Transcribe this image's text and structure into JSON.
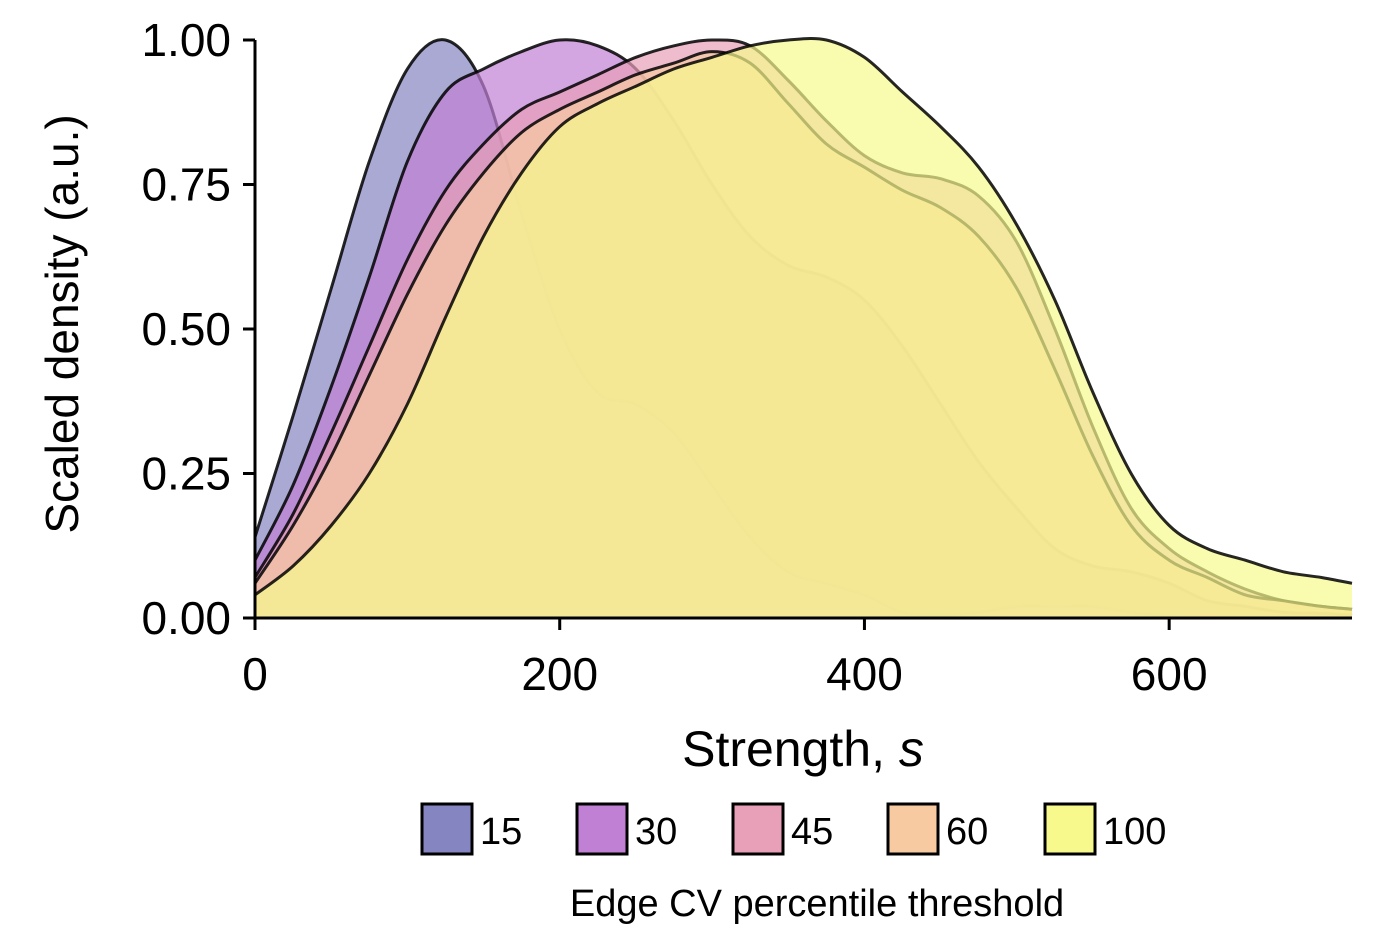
{
  "chart_data": {
    "type": "area",
    "title": "",
    "xlabel": "Strength, ",
    "xlabel_italic": "s",
    "ylabel": "Scaled density (a.u.)",
    "xlim": [
      0,
      720
    ],
    "ylim": [
      0,
      1
    ],
    "xticks": [
      "0",
      "200",
      "400",
      "600"
    ],
    "yticks": [
      "0.00",
      "0.25",
      "0.50",
      "0.75",
      "1.00"
    ],
    "grid": false,
    "legend_position": "bottom",
    "legend_title": "Edge CV percentile threshold",
    "x": [
      0,
      25,
      50,
      75,
      100,
      125,
      150,
      175,
      200,
      225,
      250,
      275,
      300,
      325,
      350,
      375,
      400,
      425,
      450,
      475,
      500,
      525,
      550,
      575,
      600,
      625,
      650,
      675,
      700,
      720
    ],
    "series": [
      {
        "name": "15",
        "color": "#8585c2",
        "values": [
          0.14,
          0.35,
          0.57,
          0.79,
          0.95,
          1.0,
          0.92,
          0.7,
          0.5,
          0.39,
          0.37,
          0.32,
          0.23,
          0.14,
          0.08,
          0.06,
          0.04,
          0.01,
          0.005,
          0.01,
          0.02,
          0.02,
          0.02,
          0.01,
          0.004,
          0.002,
          0.001,
          0.0,
          0.0,
          0.0
        ]
      },
      {
        "name": "30",
        "color": "#c080d4",
        "values": [
          0.1,
          0.23,
          0.4,
          0.59,
          0.79,
          0.91,
          0.95,
          0.98,
          1.0,
          0.99,
          0.95,
          0.86,
          0.75,
          0.66,
          0.61,
          0.59,
          0.55,
          0.47,
          0.37,
          0.27,
          0.19,
          0.12,
          0.09,
          0.08,
          0.06,
          0.03,
          0.02,
          0.01,
          0.008,
          0.005
        ]
      },
      {
        "name": "45",
        "color": "#e8a0b8",
        "values": [
          0.07,
          0.18,
          0.32,
          0.47,
          0.62,
          0.74,
          0.82,
          0.88,
          0.91,
          0.94,
          0.97,
          0.99,
          1.0,
          0.99,
          0.93,
          0.86,
          0.8,
          0.77,
          0.76,
          0.73,
          0.65,
          0.5,
          0.33,
          0.19,
          0.12,
          0.08,
          0.05,
          0.03,
          0.02,
          0.015
        ]
      },
      {
        "name": "60",
        "color": "#f8caa2",
        "values": [
          0.06,
          0.16,
          0.28,
          0.42,
          0.56,
          0.68,
          0.77,
          0.84,
          0.88,
          0.91,
          0.94,
          0.96,
          0.98,
          0.96,
          0.89,
          0.82,
          0.78,
          0.74,
          0.71,
          0.66,
          0.57,
          0.43,
          0.28,
          0.16,
          0.1,
          0.07,
          0.04,
          0.03,
          0.02,
          0.015
        ]
      },
      {
        "name": "100",
        "color": "#f7f98c",
        "values": [
          0.04,
          0.09,
          0.16,
          0.25,
          0.37,
          0.52,
          0.66,
          0.77,
          0.85,
          0.89,
          0.92,
          0.95,
          0.97,
          0.99,
          1.0,
          1.0,
          0.97,
          0.91,
          0.85,
          0.78,
          0.68,
          0.55,
          0.39,
          0.25,
          0.16,
          0.12,
          0.1,
          0.08,
          0.07,
          0.06
        ]
      }
    ]
  }
}
